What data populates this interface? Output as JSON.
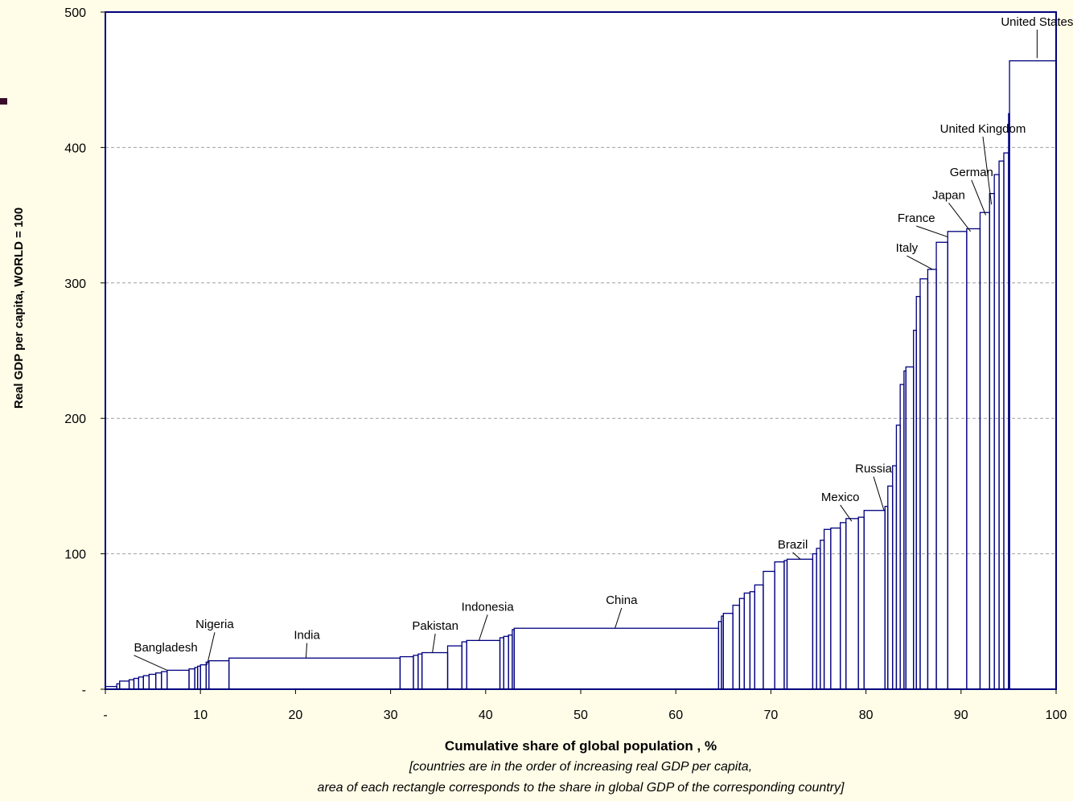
{
  "colors": {
    "background": "#fffde8",
    "plot_background": "#ffffff",
    "bar_stroke": "#00007f",
    "grid": "#a0a0a0",
    "accent_bar": "#3a0a2a"
  },
  "chart_data": {
    "type": "bar",
    "title": "",
    "xlabel": "Cumulative share of global population , %",
    "ylabel": "Real GDP per capita, WORLD = 100",
    "footnote_lines": [
      "[countries are in the order of increasing real GDP per capita,",
      "area of each rectangle corresponds to the share in global GDP of the corresponding country]"
    ],
    "xlim": [
      0,
      100
    ],
    "ylim": [
      0,
      500
    ],
    "x_ticks": [
      {
        "value": 0,
        "label": "-"
      },
      {
        "value": 10,
        "label": "10"
      },
      {
        "value": 20,
        "label": "20"
      },
      {
        "value": 30,
        "label": "30"
      },
      {
        "value": 40,
        "label": "40"
      },
      {
        "value": 50,
        "label": "50"
      },
      {
        "value": 60,
        "label": "60"
      },
      {
        "value": 70,
        "label": "70"
      },
      {
        "value": 80,
        "label": "80"
      },
      {
        "value": 90,
        "label": "90"
      },
      {
        "value": 100,
        "label": "100"
      }
    ],
    "y_ticks": [
      {
        "value": 0,
        "label": "-"
      },
      {
        "value": 100,
        "label": "100"
      },
      {
        "value": 200,
        "label": "200"
      },
      {
        "value": 300,
        "label": "300"
      },
      {
        "value": 400,
        "label": "400"
      },
      {
        "value": 500,
        "label": "500"
      }
    ],
    "grid": true,
    "legend": "none",
    "bars": [
      [
        0,
        1.2,
        2
      ],
      [
        1.2,
        1.5,
        4
      ],
      [
        1.5,
        2.5,
        6
      ],
      [
        2.5,
        3.0,
        7
      ],
      [
        3.0,
        3.5,
        8
      ],
      [
        3.5,
        4.0,
        9
      ],
      [
        4.0,
        4.6,
        10
      ],
      [
        4.6,
        5.3,
        11
      ],
      [
        5.3,
        5.9,
        12
      ],
      [
        5.9,
        6.5,
        13
      ],
      [
        6.5,
        8.8,
        14
      ],
      [
        8.8,
        9.4,
        15
      ],
      [
        9.4,
        9.7,
        16
      ],
      [
        9.7,
        10.0,
        17
      ],
      [
        10.0,
        10.6,
        18
      ],
      [
        10.6,
        10.9,
        20
      ],
      [
        10.9,
        13.0,
        21
      ],
      [
        13.0,
        31.0,
        23
      ],
      [
        31.0,
        32.4,
        24
      ],
      [
        32.4,
        32.9,
        25
      ],
      [
        32.9,
        33.3,
        26
      ],
      [
        33.3,
        36.0,
        27
      ],
      [
        36.0,
        37.5,
        32
      ],
      [
        37.5,
        38.0,
        35
      ],
      [
        38.0,
        41.5,
        36
      ],
      [
        41.5,
        41.9,
        38
      ],
      [
        41.9,
        42.4,
        39
      ],
      [
        42.4,
        42.8,
        40
      ],
      [
        42.8,
        43.0,
        44
      ],
      [
        43.0,
        64.5,
        45
      ],
      [
        64.5,
        64.8,
        50
      ],
      [
        64.8,
        65.0,
        54
      ],
      [
        65.0,
        66.0,
        56
      ],
      [
        66.0,
        66.7,
        62
      ],
      [
        66.7,
        67.2,
        67
      ],
      [
        67.2,
        67.8,
        71
      ],
      [
        67.8,
        68.3,
        72
      ],
      [
        68.3,
        69.2,
        77
      ],
      [
        69.2,
        70.4,
        87
      ],
      [
        70.4,
        71.4,
        94
      ],
      [
        71.4,
        71.7,
        95
      ],
      [
        71.7,
        74.4,
        96
      ],
      [
        74.4,
        74.8,
        100
      ],
      [
        74.8,
        75.2,
        104
      ],
      [
        75.2,
        75.6,
        110
      ],
      [
        75.6,
        76.3,
        118
      ],
      [
        76.3,
        77.3,
        119
      ],
      [
        77.3,
        77.9,
        123
      ],
      [
        77.9,
        79.2,
        126
      ],
      [
        79.2,
        79.8,
        127
      ],
      [
        79.8,
        82.0,
        132
      ],
      [
        82.0,
        82.3,
        135
      ],
      [
        82.3,
        82.8,
        150
      ],
      [
        82.8,
        83.2,
        165
      ],
      [
        83.2,
        83.6,
        195
      ],
      [
        83.6,
        84.0,
        225
      ],
      [
        84.0,
        84.2,
        235
      ],
      [
        84.2,
        85.0,
        238
      ],
      [
        85.0,
        85.3,
        265
      ],
      [
        85.3,
        85.7,
        290
      ],
      [
        85.7,
        86.5,
        303
      ],
      [
        86.5,
        87.4,
        310
      ],
      [
        87.4,
        88.6,
        330
      ],
      [
        88.6,
        90.6,
        338
      ],
      [
        90.6,
        92.0,
        340
      ],
      [
        92.0,
        93.0,
        352
      ],
      [
        93.0,
        93.5,
        366
      ],
      [
        93.5,
        94.0,
        380
      ],
      [
        94.0,
        94.5,
        390
      ],
      [
        94.5,
        95.0,
        396
      ],
      [
        95.0,
        95.1,
        425
      ],
      [
        95.1,
        100.0,
        464
      ]
    ],
    "country_labels": [
      {
        "name": "Bangladesh",
        "x": 6.5,
        "y": 14,
        "label_x": 3.0,
        "label_y": 28,
        "align": "start"
      },
      {
        "name": "Nigeria",
        "x": 10.7,
        "y": 18,
        "label_x": 11.5,
        "label_y": 45,
        "align": "middle"
      },
      {
        "name": "India",
        "x": 21.1,
        "y": 23,
        "label_x": 21.2,
        "label_y": 37,
        "align": "middle"
      },
      {
        "name": "Pakistan",
        "x": 34.4,
        "y": 27,
        "label_x": 34.7,
        "label_y": 44,
        "align": "middle"
      },
      {
        "name": "Indonesia",
        "x": 39.3,
        "y": 36,
        "label_x": 40.2,
        "label_y": 58,
        "align": "middle"
      },
      {
        "name": "China",
        "x": 53.6,
        "y": 45,
        "label_x": 54.3,
        "label_y": 63,
        "align": "middle"
      },
      {
        "name": "Brazil",
        "x": 73.1,
        "y": 96,
        "label_x": 72.3,
        "label_y": 104,
        "align": "middle"
      },
      {
        "name": "Mexico",
        "x": 78.5,
        "y": 124,
        "label_x": 77.3,
        "label_y": 139,
        "align": "middle"
      },
      {
        "name": "Russia",
        "x": 81.9,
        "y": 132,
        "label_x": 80.8,
        "label_y": 160,
        "align": "middle"
      },
      {
        "name": "Italy",
        "x": 87.0,
        "y": 310,
        "label_x": 84.3,
        "label_y": 323,
        "align": "middle"
      },
      {
        "name": "France",
        "x": 88.6,
        "y": 334,
        "label_x": 85.3,
        "label_y": 345,
        "align": "middle"
      },
      {
        "name": "Japan",
        "x": 91.0,
        "y": 338,
        "label_x": 88.7,
        "label_y": 362,
        "align": "middle"
      },
      {
        "name": "German",
        "x": 92.6,
        "y": 350,
        "label_x": 91.1,
        "label_y": 379,
        "align": "middle"
      },
      {
        "name": "United Kingdom",
        "x": 93.2,
        "y": 358,
        "label_x": 92.3,
        "label_y": 411,
        "align": "middle"
      },
      {
        "name": "United States",
        "x": 98.0,
        "y": 466,
        "label_x": 98.0,
        "label_y": 490,
        "align": "middle"
      }
    ]
  }
}
